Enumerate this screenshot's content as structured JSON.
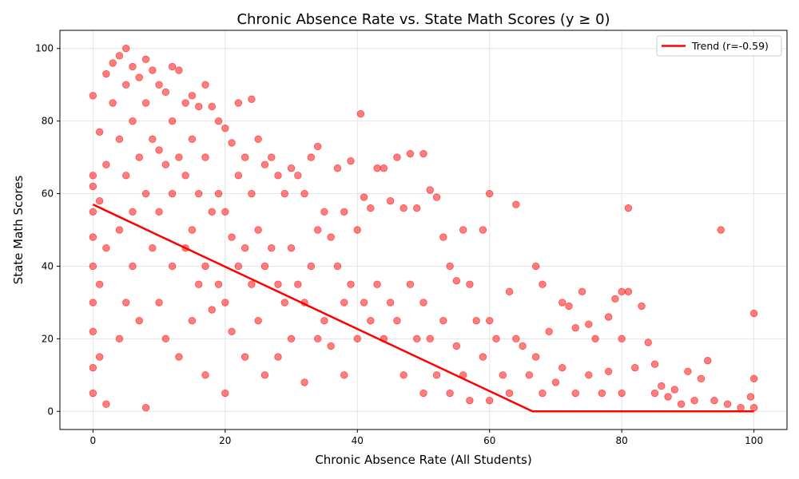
{
  "chart_data": {
    "type": "scatter",
    "title": "Chronic Absence Rate vs. State Math Scores (y ≥ 0)",
    "xlabel": "Chronic Absence Rate (All Students)",
    "ylabel": "State Math Scores",
    "xlim": [
      -5,
      105
    ],
    "ylim": [
      -5,
      105
    ],
    "xticks": [
      0,
      20,
      40,
      60,
      80,
      100
    ],
    "yticks": [
      0,
      20,
      40,
      60,
      80,
      100
    ],
    "grid": true,
    "legend_position": "top-right",
    "colors": {
      "points": "#ff0000",
      "trend": "#ff0000"
    },
    "series": [
      {
        "name": "",
        "kind": "points",
        "sample": [
          [
            0,
            87
          ],
          [
            0,
            65
          ],
          [
            0,
            62
          ],
          [
            0,
            55
          ],
          [
            0,
            48
          ],
          [
            0,
            40
          ],
          [
            0,
            30
          ],
          [
            0,
            22
          ],
          [
            0,
            12
          ],
          [
            0,
            5
          ],
          [
            1,
            77
          ],
          [
            1,
            58
          ],
          [
            1,
            35
          ],
          [
            1,
            15
          ],
          [
            2,
            93
          ],
          [
            2,
            68
          ],
          [
            2,
            45
          ],
          [
            2,
            2
          ],
          [
            3,
            96
          ],
          [
            3,
            85
          ],
          [
            4,
            98
          ],
          [
            4,
            75
          ],
          [
            4,
            50
          ],
          [
            4,
            20
          ],
          [
            5,
            100
          ],
          [
            5,
            90
          ],
          [
            5,
            65
          ],
          [
            5,
            30
          ],
          [
            6,
            95
          ],
          [
            6,
            80
          ],
          [
            6,
            55
          ],
          [
            6,
            40
          ],
          [
            7,
            92
          ],
          [
            7,
            70
          ],
          [
            7,
            25
          ],
          [
            8,
            97
          ],
          [
            8,
            85
          ],
          [
            8,
            60
          ],
          [
            8,
            1
          ],
          [
            9,
            94
          ],
          [
            9,
            75
          ],
          [
            9,
            45
          ],
          [
            10,
            90
          ],
          [
            10,
            72
          ],
          [
            10,
            55
          ],
          [
            10,
            30
          ],
          [
            11,
            88
          ],
          [
            11,
            68
          ],
          [
            11,
            20
          ],
          [
            12,
            95
          ],
          [
            12,
            80
          ],
          [
            12,
            60
          ],
          [
            12,
            40
          ],
          [
            13,
            94
          ],
          [
            13,
            70
          ],
          [
            13,
            15
          ],
          [
            14,
            85
          ],
          [
            14,
            65
          ],
          [
            14,
            45
          ],
          [
            15,
            87
          ],
          [
            15,
            75
          ],
          [
            15,
            50
          ],
          [
            15,
            25
          ],
          [
            16,
            84
          ],
          [
            16,
            60
          ],
          [
            16,
            35
          ],
          [
            17,
            90
          ],
          [
            17,
            70
          ],
          [
            17,
            40
          ],
          [
            17,
            10
          ],
          [
            18,
            84
          ],
          [
            18,
            55
          ],
          [
            18,
            28
          ],
          [
            19,
            80
          ],
          [
            19,
            60
          ],
          [
            19,
            35
          ],
          [
            20,
            78
          ],
          [
            20,
            55
          ],
          [
            20,
            30
          ],
          [
            20,
            5
          ],
          [
            21,
            74
          ],
          [
            21,
            48
          ],
          [
            21,
            22
          ],
          [
            22,
            85
          ],
          [
            22,
            65
          ],
          [
            22,
            40
          ],
          [
            23,
            70
          ],
          [
            23,
            45
          ],
          [
            23,
            15
          ],
          [
            24,
            86
          ],
          [
            24,
            60
          ],
          [
            24,
            35
          ],
          [
            25,
            75
          ],
          [
            25,
            50
          ],
          [
            25,
            25
          ],
          [
            26,
            68
          ],
          [
            26,
            40
          ],
          [
            26,
            10
          ],
          [
            27,
            70
          ],
          [
            27,
            45
          ],
          [
            28,
            65
          ],
          [
            28,
            35
          ],
          [
            28,
            15
          ],
          [
            29,
            60
          ],
          [
            29,
            30
          ],
          [
            30,
            67
          ],
          [
            30,
            45
          ],
          [
            30,
            20
          ],
          [
            31,
            65
          ],
          [
            31,
            35
          ],
          [
            32,
            60
          ],
          [
            32,
            30
          ],
          [
            32,
            8
          ],
          [
            33,
            70
          ],
          [
            33,
            40
          ],
          [
            34,
            73
          ],
          [
            34,
            50
          ],
          [
            34,
            20
          ],
          [
            35,
            55
          ],
          [
            35,
            25
          ],
          [
            36,
            48
          ],
          [
            36,
            18
          ],
          [
            37,
            67
          ],
          [
            37,
            40
          ],
          [
            38,
            55
          ],
          [
            38,
            30
          ],
          [
            38,
            10
          ],
          [
            39,
            69
          ],
          [
            39,
            35
          ],
          [
            40,
            50
          ],
          [
            40,
            20
          ],
          [
            40.5,
            82
          ],
          [
            41,
            59
          ],
          [
            41,
            30
          ],
          [
            42,
            56
          ],
          [
            42,
            25
          ],
          [
            43,
            67
          ],
          [
            43,
            35
          ],
          [
            44,
            67
          ],
          [
            44,
            20
          ],
          [
            45,
            58
          ],
          [
            45,
            30
          ],
          [
            46,
            70
          ],
          [
            46,
            25
          ],
          [
            47,
            56
          ],
          [
            47,
            10
          ],
          [
            48,
            71
          ],
          [
            48,
            35
          ],
          [
            49,
            56
          ],
          [
            49,
            20
          ],
          [
            50,
            71
          ],
          [
            50,
            30
          ],
          [
            50,
            5
          ],
          [
            51,
            61
          ],
          [
            51,
            20
          ],
          [
            52,
            59
          ],
          [
            52,
            10
          ],
          [
            53,
            48
          ],
          [
            53,
            25
          ],
          [
            54,
            40
          ],
          [
            54,
            5
          ],
          [
            55,
            36
          ],
          [
            55,
            18
          ],
          [
            56,
            50
          ],
          [
            56,
            10
          ],
          [
            57,
            35
          ],
          [
            57,
            3
          ],
          [
            58,
            25
          ],
          [
            59,
            50
          ],
          [
            59,
            15
          ],
          [
            60,
            60
          ],
          [
            60,
            25
          ],
          [
            60,
            3
          ],
          [
            61,
            20
          ],
          [
            62,
            10
          ],
          [
            63,
            33
          ],
          [
            63,
            5
          ],
          [
            64,
            57
          ],
          [
            64,
            20
          ],
          [
            65,
            18
          ],
          [
            66,
            10
          ],
          [
            67,
            40
          ],
          [
            67,
            15
          ],
          [
            68,
            35
          ],
          [
            68,
            5
          ],
          [
            69,
            22
          ],
          [
            70,
            8
          ],
          [
            71,
            30
          ],
          [
            71,
            12
          ],
          [
            72,
            29
          ],
          [
            73,
            23
          ],
          [
            73,
            5
          ],
          [
            74,
            33
          ],
          [
            75,
            24
          ],
          [
            75,
            10
          ],
          [
            76,
            20
          ],
          [
            77,
            5
          ],
          [
            78,
            26
          ],
          [
            78,
            11
          ],
          [
            79,
            31
          ],
          [
            80,
            33
          ],
          [
            80,
            20
          ],
          [
            80,
            5
          ],
          [
            81,
            56
          ],
          [
            81,
            33
          ],
          [
            82,
            12
          ],
          [
            83,
            29
          ],
          [
            84,
            19
          ],
          [
            85,
            13
          ],
          [
            85,
            5
          ],
          [
            86,
            7
          ],
          [
            87,
            4
          ],
          [
            88,
            6
          ],
          [
            89,
            2
          ],
          [
            90,
            11
          ],
          [
            91,
            3
          ],
          [
            92,
            9
          ],
          [
            93,
            14
          ],
          [
            94,
            3
          ],
          [
            95,
            50
          ],
          [
            96,
            2
          ],
          [
            98,
            1
          ],
          [
            99.5,
            4
          ],
          [
            100,
            27
          ],
          [
            100,
            9
          ],
          [
            100,
            1
          ]
        ]
      },
      {
        "name": "Trend (r=-0.59)",
        "kind": "line",
        "x": [
          0,
          66.5,
          100
        ],
        "y": [
          57,
          0,
          0
        ]
      }
    ]
  }
}
